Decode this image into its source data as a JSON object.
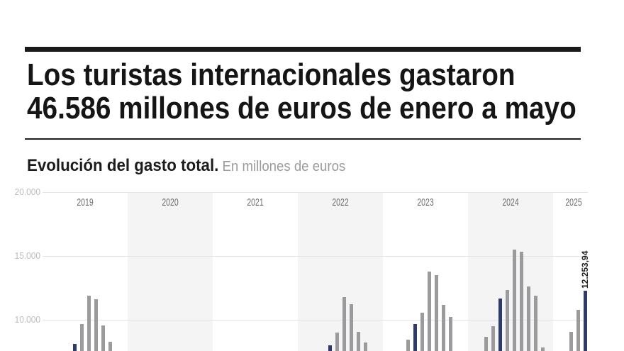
{
  "header": {
    "title_line1": "Los turistas internacionales gastaron",
    "title_line2": "46.586 millones de euros de enero a mayo"
  },
  "subtitle": {
    "bold": "Evolución del gasto total.",
    "units": "En millones de euros"
  },
  "chart_data": {
    "type": "bar",
    "title": "Evolución del gasto total",
    "units_label": "En millones de euros",
    "y_axis": {
      "grid": true,
      "ticks": [
        {
          "label": "20.000",
          "value": 20000
        },
        {
          "label": "15.000",
          "value": 15000
        },
        {
          "label": "10.000",
          "value": 10000
        }
      ],
      "visible_bottom_value": 7550
    },
    "x_axis_years": [
      "2019",
      "2020",
      "2021",
      "2022",
      "2023",
      "2024",
      "2025"
    ],
    "shaded_years": [
      "2020",
      "2022",
      "2024"
    ],
    "highlighted_month": 5,
    "highlighted_month_name": "mayo",
    "series": [
      {
        "year": "2019",
        "bars": [
          {
            "month": 5,
            "value": 8100
          },
          {
            "month": 6,
            "value": 9650
          },
          {
            "month": 7,
            "value": 11900
          },
          {
            "month": 8,
            "value": 11600
          },
          {
            "month": 9,
            "value": 9550
          },
          {
            "month": 10,
            "value": 8300
          }
        ]
      },
      {
        "year": "2020",
        "bars": []
      },
      {
        "year": "2021",
        "bars": []
      },
      {
        "year": "2022",
        "bars": [
          {
            "month": 5,
            "value": 8000
          },
          {
            "month": 6,
            "value": 9000
          },
          {
            "month": 7,
            "value": 11800
          },
          {
            "month": 8,
            "value": 11200
          },
          {
            "month": 9,
            "value": 9050
          },
          {
            "month": 10,
            "value": 8250
          }
        ]
      },
      {
        "year": "2023",
        "bars": [
          {
            "month": 4,
            "value": 8450
          },
          {
            "month": 5,
            "value": 9650
          },
          {
            "month": 6,
            "value": 10550
          },
          {
            "month": 7,
            "value": 13800
          },
          {
            "month": 8,
            "value": 13500
          },
          {
            "month": 9,
            "value": 11150
          },
          {
            "month": 10,
            "value": 10250
          }
        ]
      },
      {
        "year": "2024",
        "bars": [
          {
            "month": 3,
            "value": 8650
          },
          {
            "month": 4,
            "value": 9500
          },
          {
            "month": 5,
            "value": 11650
          },
          {
            "month": 6,
            "value": 12350
          },
          {
            "month": 7,
            "value": 15500
          },
          {
            "month": 8,
            "value": 15350
          },
          {
            "month": 9,
            "value": 12600
          },
          {
            "month": 10,
            "value": 11900
          },
          {
            "month": 11,
            "value": 7850
          }
        ]
      },
      {
        "year": "2025",
        "bars": [
          {
            "month": 3,
            "value": 9050
          },
          {
            "month": 4,
            "value": 10800
          },
          {
            "month": 5,
            "value": 12253.94
          }
        ]
      }
    ],
    "annotation": {
      "text": "12.253,94",
      "year": "2025",
      "month": 5
    },
    "colors": {
      "bar": "#9b9b9e",
      "highlight_bar": "#2f3b69",
      "shaded_band": "#f4f4f4",
      "gridline": "#e4e4e4",
      "ytick_text": "#bdbdbd",
      "year_text": "#6e6e6e",
      "title_text": "#151515",
      "rule": "#1a1a1a"
    }
  }
}
